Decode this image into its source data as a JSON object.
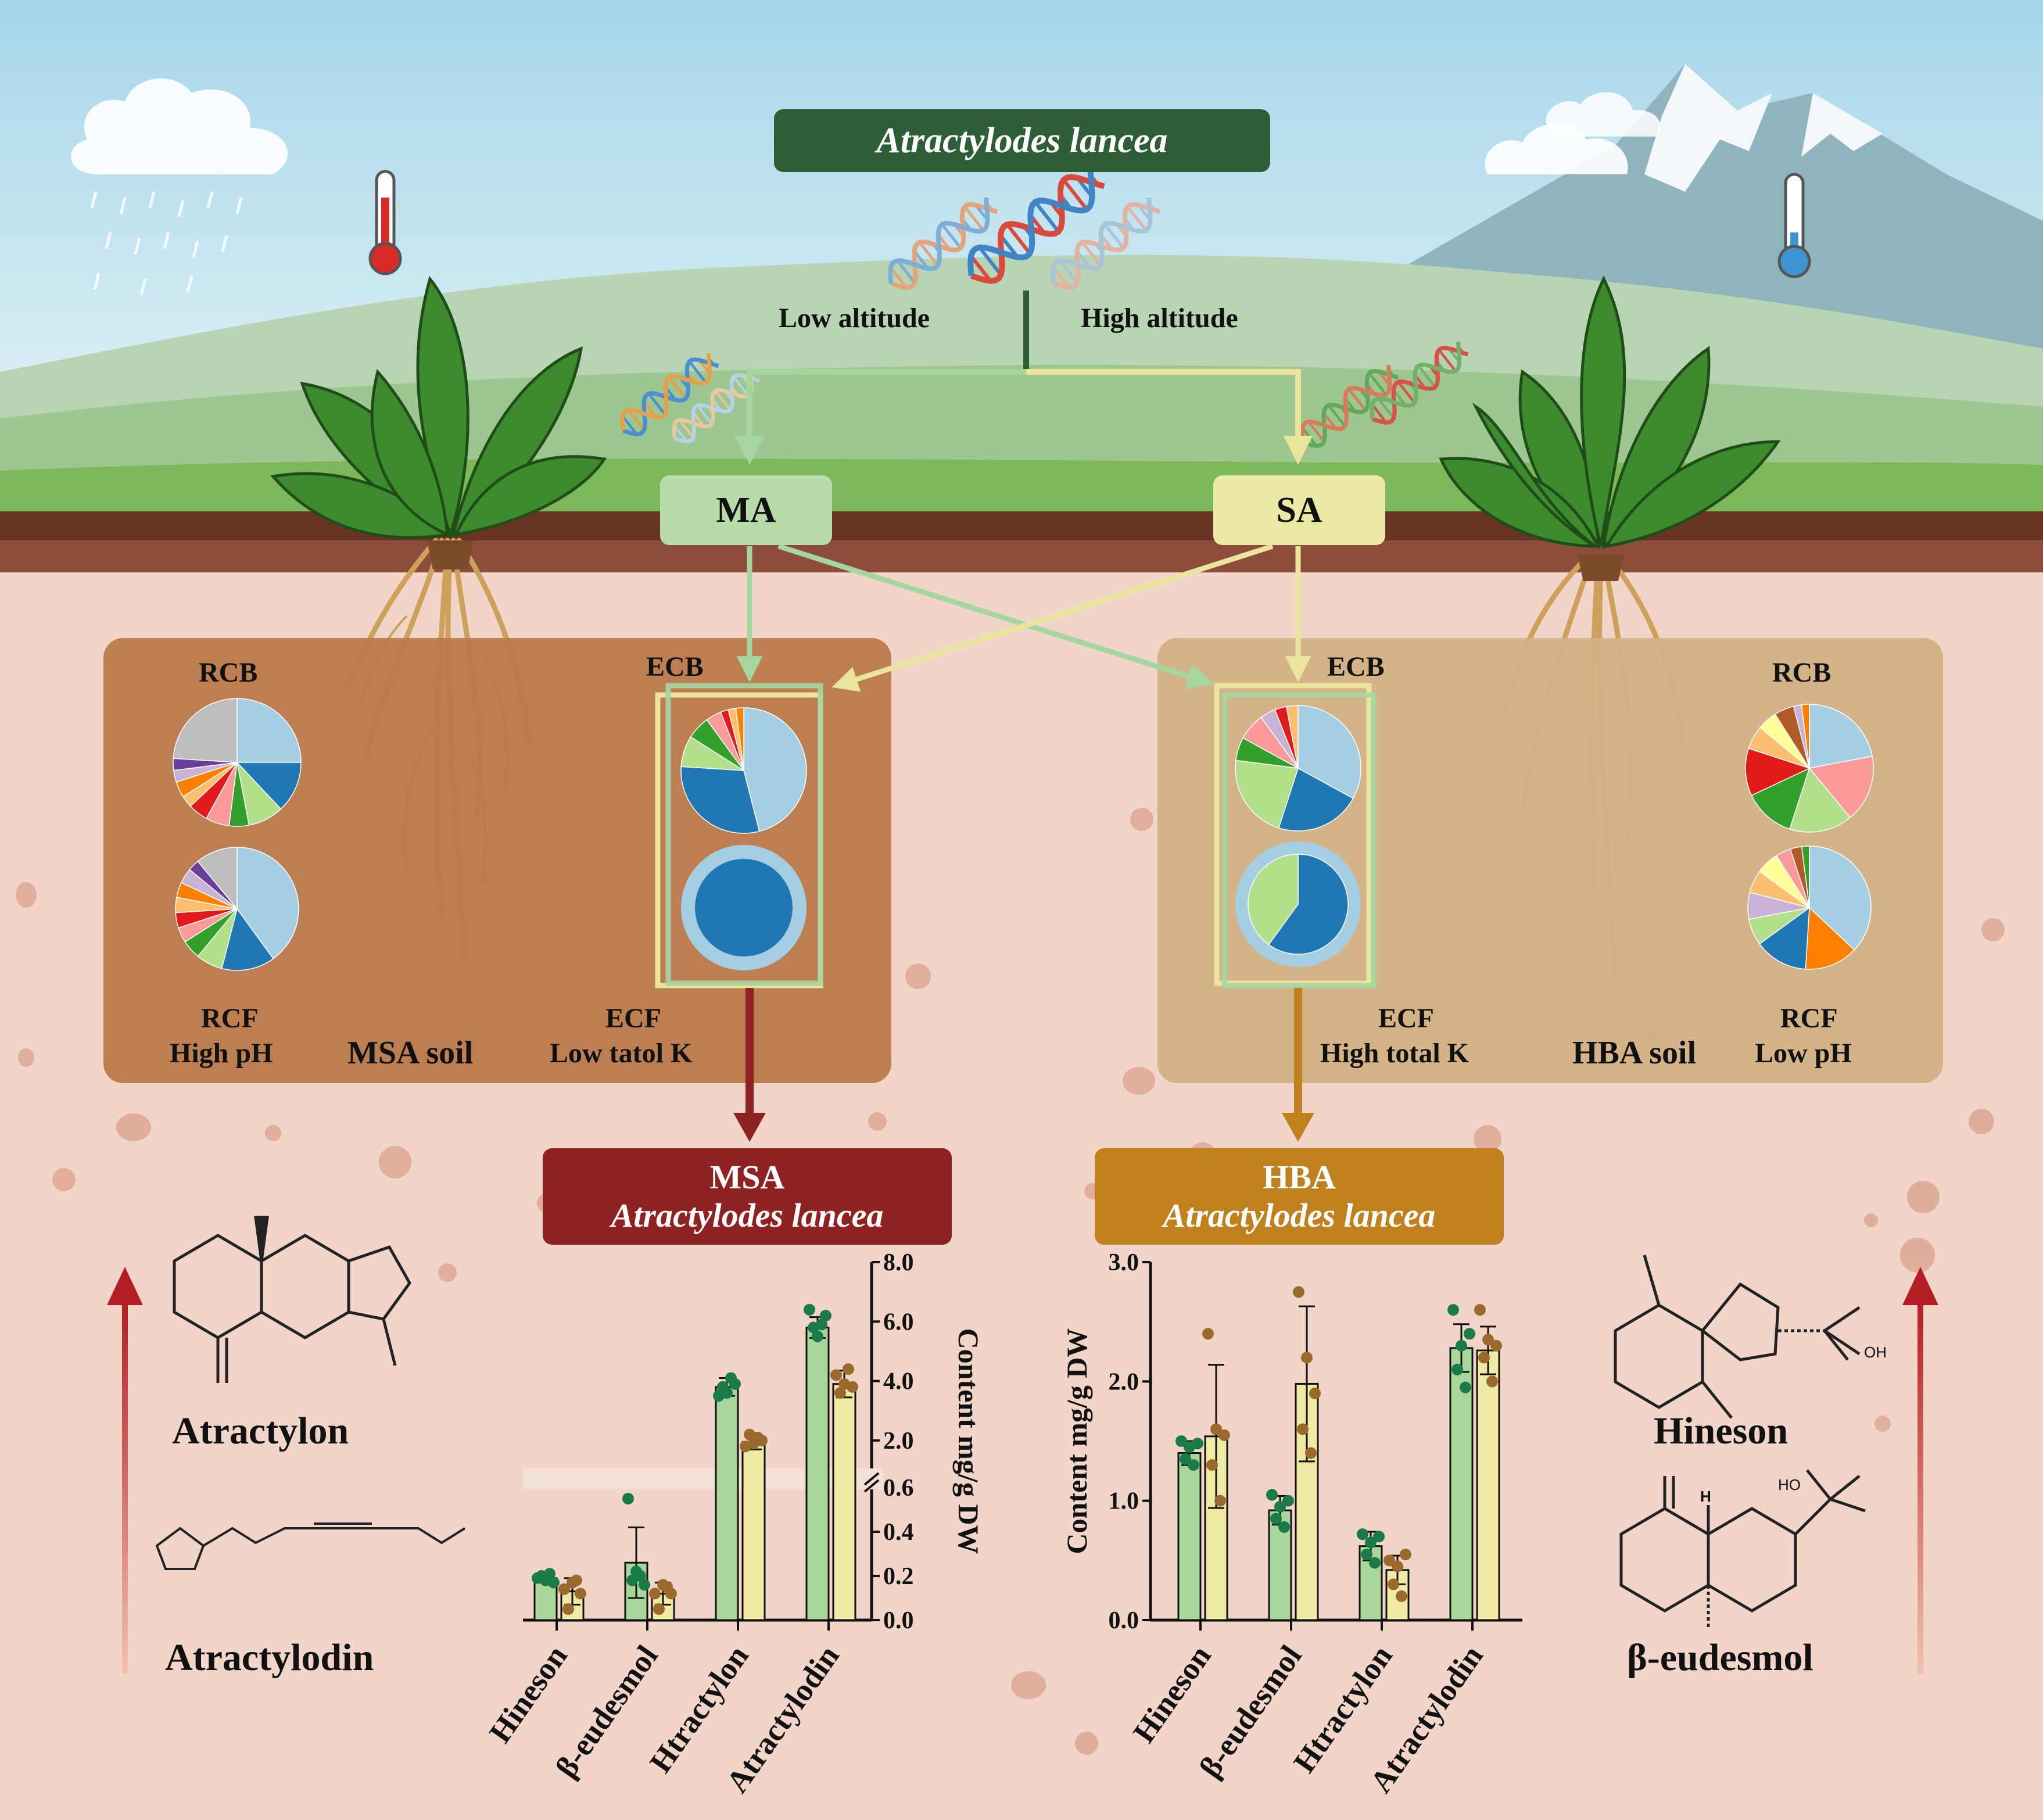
{
  "title": "Atractylodes lancea",
  "altitude": {
    "low": "Low altitude",
    "high": "High altitude"
  },
  "groups": {
    "ma": "MA",
    "sa": "SA"
  },
  "left_panel": {
    "rcb": "RCB",
    "ecb": "ECB",
    "rcf": "RCF",
    "ph": "High pH",
    "soil": "MSA soil",
    "ecf": "ECF",
    "k": "Low tatol K"
  },
  "right_panel": {
    "rcb": "RCB",
    "ecb": "ECB",
    "rcf": "RCF",
    "ph": "Low pH",
    "soil": "HBA soil",
    "ecf": "ECF",
    "k": "High total K"
  },
  "msa_box": {
    "line1": "MSA",
    "line2": "Atractylodes lancea"
  },
  "hba_box": {
    "line1": "HBA",
    "line2": "Atractylodes lancea"
  },
  "compounds": {
    "left": [
      "Atractylon",
      "Atractylodin"
    ],
    "right": [
      "Hineson",
      "β-eudesmol"
    ],
    "oh": "OH",
    "ho": "HO",
    "h": "H"
  },
  "colors": {
    "title_box": "#2d5e35",
    "ma_box": "#b7dcaa",
    "sa_box": "#ece9a6",
    "msa_box": "#8e2222",
    "hba_box": "#c0801d",
    "left_panel": "#b97a4c",
    "right_panel": "#d1b184",
    "bar_green": "#a9d79a",
    "bar_yellow": "#eeeaa3",
    "dot_green": "#1a7a4a",
    "dot_brown": "#9a6a2c"
  },
  "pies": {
    "left_rcb": [
      [
        "#a6cee3",
        25
      ],
      [
        "#1f78b4",
        13
      ],
      [
        "#b2df8a",
        9
      ],
      [
        "#33a02c",
        5
      ],
      [
        "#fb9a99",
        6
      ],
      [
        "#e31a1c",
        5
      ],
      [
        "#fdbf6f",
        3
      ],
      [
        "#ff7f00",
        4
      ],
      [
        "#cab2d6",
        3
      ],
      [
        "#6a3d9a",
        3
      ],
      [
        "#bdbdbd",
        24
      ]
    ],
    "left_rcf": [
      [
        "#a6cee3",
        40
      ],
      [
        "#1f78b4",
        14
      ],
      [
        "#b2df8a",
        7
      ],
      [
        "#33a02c",
        5
      ],
      [
        "#fb9a99",
        4
      ],
      [
        "#e31a1c",
        4
      ],
      [
        "#fdbf6f",
        4
      ],
      [
        "#ff7f00",
        4
      ],
      [
        "#cab2d6",
        4
      ],
      [
        "#6a3d9a",
        3
      ],
      [
        "#bdbdbd",
        11
      ]
    ],
    "left_ecb": [
      [
        "#a6cee3",
        46
      ],
      [
        "#1f78b4",
        30
      ],
      [
        "#b2df8a",
        8
      ],
      [
        "#33a02c",
        6
      ],
      [
        "#fb9a99",
        4
      ],
      [
        "#e31a1c",
        2
      ],
      [
        "#fdbf6f",
        2
      ],
      [
        "#ff7f00",
        2
      ]
    ],
    "right_ecb": [
      [
        "#a6cee3",
        33
      ],
      [
        "#1f78b4",
        22
      ],
      [
        "#b2df8a",
        22
      ],
      [
        "#33a02c",
        6
      ],
      [
        "#fb9a99",
        7
      ],
      [
        "#cab2d6",
        4
      ],
      [
        "#e31a1c",
        3
      ],
      [
        "#fdbf6f",
        3
      ]
    ],
    "right_ecf": [
      [
        "#1f78b4",
        60
      ],
      [
        "#b2df8a",
        40
      ]
    ],
    "right_rcb": [
      [
        "#a6cee3",
        22
      ],
      [
        "#fb9a99",
        17
      ],
      [
        "#b2df8a",
        16
      ],
      [
        "#33a02c",
        13
      ],
      [
        "#e31a1c",
        12
      ],
      [
        "#fdbf6f",
        6
      ],
      [
        "#ffff99",
        5
      ],
      [
        "#b15928",
        5
      ],
      [
        "#cab2d6",
        2
      ],
      [
        "#ff7f00",
        2
      ]
    ],
    "right_rcf": [
      [
        "#a6cee3",
        37
      ],
      [
        "#ff7f00",
        14
      ],
      [
        "#1f78b4",
        14
      ],
      [
        "#b2df8a",
        7
      ],
      [
        "#cab2d6",
        7
      ],
      [
        "#fdbf6f",
        6
      ],
      [
        "#ffff99",
        6
      ],
      [
        "#fb9a99",
        4
      ],
      [
        "#b15928",
        3
      ],
      [
        "#33a02c",
        2
      ]
    ]
  },
  "chart_data": [
    {
      "type": "bar",
      "title": "",
      "categories": [
        "Hineson",
        "β-eudesmol",
        "Htractylon",
        "Atractylodin"
      ],
      "series": [
        {
          "color": "#a9d79a",
          "values": [
            0.19,
            0.26,
            3.8,
            5.8
          ],
          "errors": [
            0.02,
            0.16,
            0.3,
            0.35
          ]
        },
        {
          "color": "#eeeaa3",
          "values": [
            0.13,
            0.12,
            1.95,
            3.9
          ],
          "errors": [
            0.06,
            0.05,
            0.25,
            0.45
          ]
        }
      ],
      "ylabel": "Content mg/g DW",
      "axis_position": "right",
      "broken_axis": true,
      "y_ticks_lower": [
        "0.0",
        "0.2",
        "0.4",
        "0.6"
      ],
      "y_ticks_upper": [
        "2.0",
        "4.0",
        "6.0",
        "8.0"
      ],
      "ylim_lower": [
        0,
        0.6
      ],
      "ylim_upper": [
        1.0,
        8.0
      ],
      "points": [
        [
          [
            0.19,
            0.2,
            0.18,
            0.21,
            0.17
          ],
          [
            0.14,
            0.05,
            0.17,
            0.18,
            0.12
          ]
        ],
        [
          [
            0.55,
            0.18,
            0.22,
            0.2,
            0.16
          ],
          [
            0.12,
            0.05,
            0.16,
            0.15,
            0.12
          ]
        ],
        [
          [
            3.5,
            3.8,
            3.6,
            4.1,
            3.9
          ],
          [
            1.8,
            2.2,
            1.9,
            2.1,
            2.0
          ]
        ],
        [
          [
            6.4,
            5.8,
            5.5,
            5.9,
            6.2
          ],
          [
            4.2,
            3.6,
            3.9,
            4.4,
            3.8
          ]
        ]
      ]
    },
    {
      "type": "bar",
      "title": "",
      "categories": [
        "Hineson",
        "β-eudesmol",
        "Htractylon",
        "Atractylodin"
      ],
      "series": [
        {
          "color": "#a9d79a",
          "values": [
            1.4,
            0.92,
            0.62,
            2.28
          ],
          "errors": [
            0.1,
            0.12,
            0.12,
            0.2
          ]
        },
        {
          "color": "#eeeaa3",
          "values": [
            1.54,
            1.98,
            0.42,
            2.26
          ],
          "errors": [
            0.6,
            0.65,
            0.12,
            0.2
          ]
        }
      ],
      "ylabel": "Content mg/g DW",
      "axis_position": "left",
      "y_ticks": [
        "0.0",
        "1.0",
        "2.0",
        "3.0"
      ],
      "ylim": [
        0,
        3.0
      ],
      "points": [
        [
          [
            1.5,
            1.35,
            1.45,
            1.3,
            1.48
          ],
          [
            2.4,
            1.3,
            1.6,
            1.0,
            1.55
          ]
        ],
        [
          [
            1.05,
            0.85,
            0.95,
            0.78,
            1.0
          ],
          [
            2.75,
            1.6,
            2.2,
            1.4,
            1.9
          ]
        ],
        [
          [
            0.72,
            0.55,
            0.65,
            0.48,
            0.7
          ],
          [
            0.5,
            0.3,
            0.45,
            0.2,
            0.55
          ]
        ],
        [
          [
            2.6,
            2.1,
            2.3,
            1.95,
            2.4
          ],
          [
            2.6,
            2.2,
            2.35,
            2.0,
            2.3
          ]
        ]
      ]
    }
  ]
}
